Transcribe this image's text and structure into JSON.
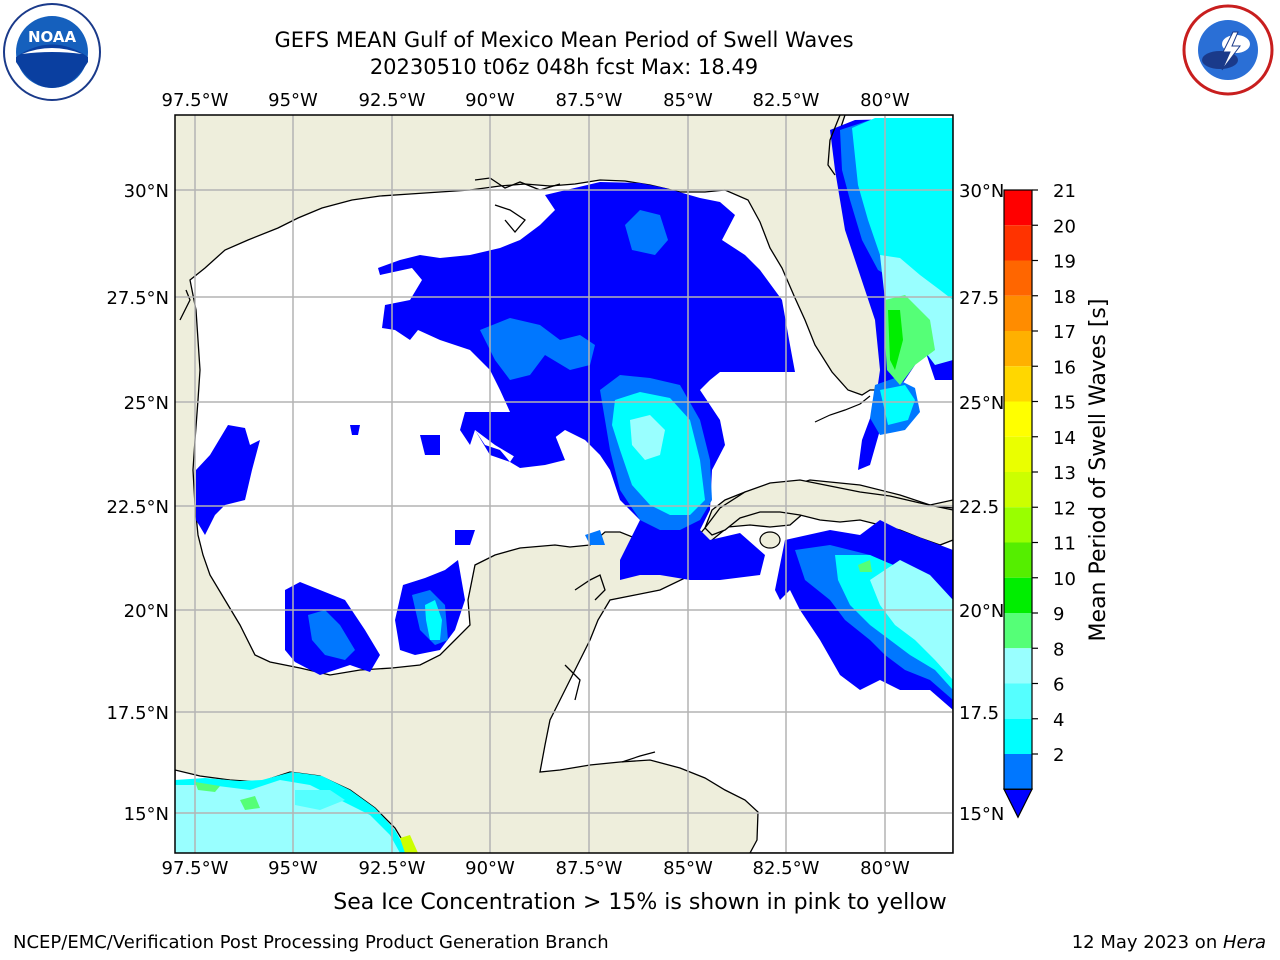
{
  "header": {
    "title_line1": "GEFS MEAN Gulf of Mexico Mean Period of Swell Waves",
    "title_line2": "20230510 t06z 048h fcst   Max: 18.49"
  },
  "logos": {
    "left": {
      "name": "noaa-logo",
      "text": "NOAA"
    },
    "right": {
      "name": "nws-logo"
    }
  },
  "map": {
    "lon_ticks": [
      "97.5°W",
      "95°W",
      "92.5°W",
      "90°W",
      "87.5°W",
      "85°W",
      "82.5°W",
      "80°W"
    ],
    "lat_ticks_left": [
      "30°N",
      "27.5°N",
      "25°N",
      "22.5°N",
      "20°N",
      "17.5°N",
      "15°N"
    ],
    "lat_ticks_right": [
      "30°N",
      "27.5",
      "25°N",
      "22.5",
      "20°N",
      "17.5",
      "15°N"
    ],
    "land_color": "#eeeedc",
    "water_color": "#ffffff",
    "grid_color": "#b4b4b4"
  },
  "colorbar": {
    "label": "Mean Period of Swell Waves [s]",
    "ticks": [
      "21",
      "20",
      "19",
      "18",
      "17",
      "16",
      "15",
      "14",
      "13",
      "12",
      "11",
      "10",
      "9",
      "8",
      "6",
      "4",
      "2"
    ],
    "colors": [
      "#ff0000",
      "#ff3300",
      "#ff6600",
      "#ff8c00",
      "#ffb000",
      "#ffd700",
      "#ffff00",
      "#eaff00",
      "#ccff00",
      "#99ff00",
      "#55ee00",
      "#00ee00",
      "#55ff77",
      "#99ffff",
      "#55ffff",
      "#00ffff",
      "#0077ff"
    ],
    "extend_color": "#0000ff"
  },
  "note": "Sea Ice Concentration > 15% is shown in pink to yellow",
  "footer": {
    "left": "NCEP/EMC/Verification Post Processing Product Generation Branch",
    "date": "12 May 2023 on ",
    "machine": "Hera"
  }
}
